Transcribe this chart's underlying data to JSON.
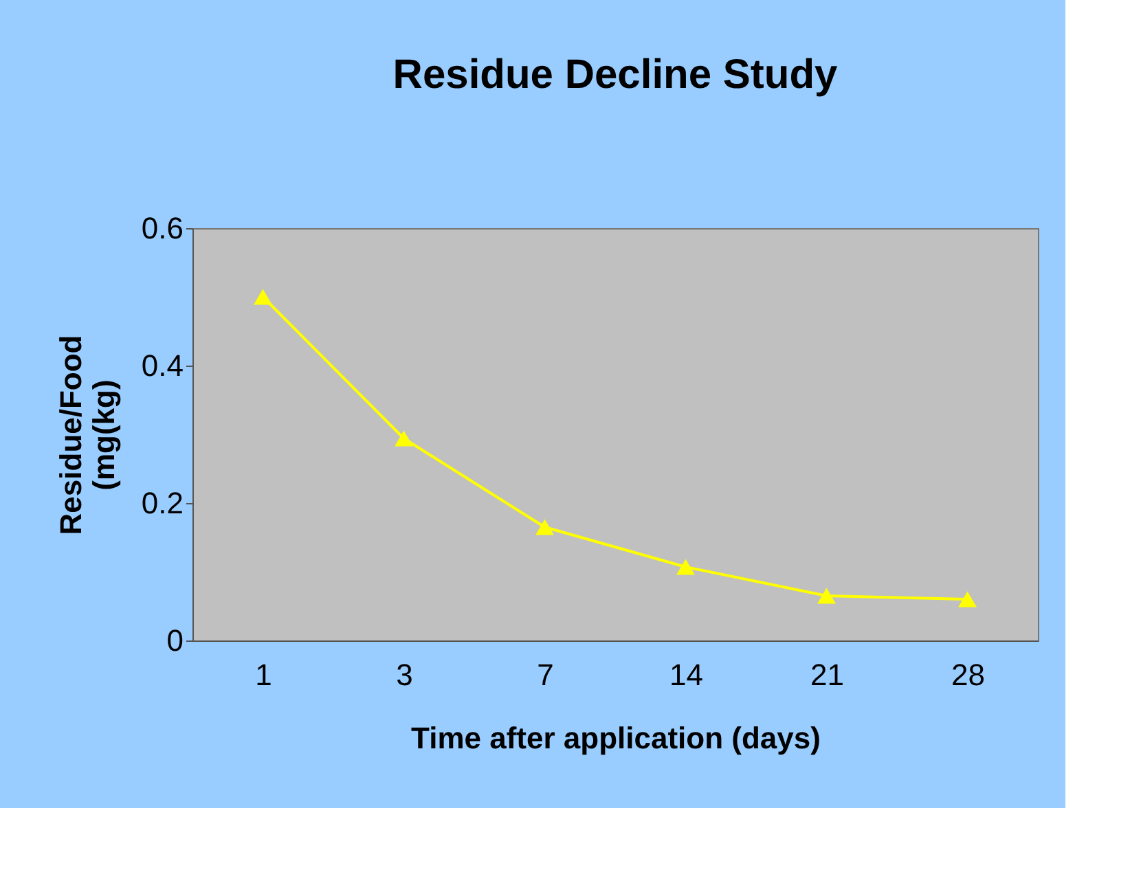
{
  "chart_data": {
    "type": "line",
    "title": "Residue Decline Study",
    "xlabel": "Time after application (days)",
    "ylabel": "Residue/Food\n(mg(kg)",
    "categories": [
      "1",
      "3",
      "7",
      "14",
      "21",
      "28"
    ],
    "series": [
      {
        "color": "#ffff00",
        "values": [
          0.5,
          0.294,
          0.165,
          0.107,
          0.065,
          0.06
        ]
      }
    ],
    "ylim": [
      0,
      0.6
    ],
    "yticks": [
      0,
      0.2,
      0.4,
      0.6
    ],
    "grid": false,
    "marker": "triangle",
    "line_style": "solid"
  }
}
